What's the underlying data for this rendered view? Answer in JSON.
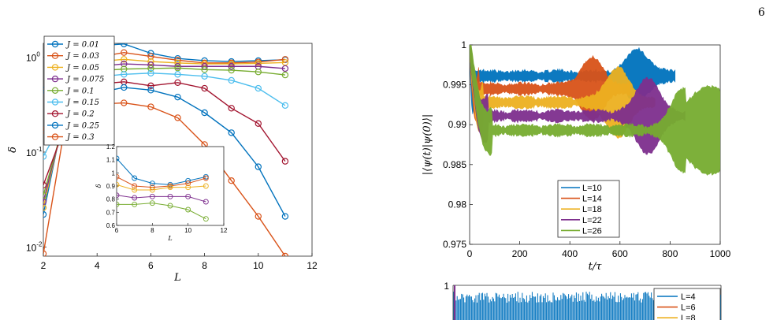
{
  "page_number": "6",
  "chart_data": [
    {
      "id": "left-main",
      "type": "line",
      "xlabel": "L",
      "ylabel": "δ",
      "xlim": [
        2,
        12
      ],
      "ylim": [
        0.008,
        1.4
      ],
      "yscale": "log",
      "xticks": [
        "2",
        "4",
        "6",
        "8",
        "10",
        "12"
      ],
      "yticks": [
        {
          "base": "10",
          "exp": "-2",
          "value": 0.01
        },
        {
          "base": "10",
          "exp": "-1",
          "value": 0.1
        },
        {
          "base": "10",
          "exp": "0",
          "value": 1
        }
      ],
      "x": [
        2,
        3,
        4,
        5,
        6,
        7,
        8,
        9,
        10,
        11
      ],
      "legend_loc": "top-left",
      "series": [
        {
          "name": "J = 0.01",
          "color": "#0072bd",
          "values": [
            0.022,
            0.52,
            1.32,
            1.38,
            1.1,
            0.97,
            0.92,
            0.9,
            0.92,
            0.94
          ]
        },
        {
          "name": "J = 0.03",
          "color": "#d95319",
          "values": [
            0.0085,
            0.4,
            1.0,
            1.12,
            1.02,
            0.93,
            0.87,
            0.87,
            0.89,
            0.95
          ]
        },
        {
          "name": "J = 0.05",
          "color": "#edb120",
          "values": [
            0.026,
            0.45,
            0.9,
            0.95,
            0.9,
            0.87,
            0.85,
            0.85,
            0.86,
            0.88
          ]
        },
        {
          "name": "J = 0.075",
          "color": "#7e2f8e",
          "values": [
            0.03,
            0.4,
            0.8,
            0.85,
            0.83,
            0.8,
            0.8,
            0.8,
            0.8,
            0.76
          ]
        },
        {
          "name": "J = 0.1",
          "color": "#77ac30",
          "values": [
            0.035,
            0.35,
            0.72,
            0.75,
            0.76,
            0.77,
            0.74,
            0.73,
            0.7,
            0.65
          ]
        },
        {
          "name": "J = 0.15",
          "color": "#4dbeee",
          "values": [
            0.09,
            0.3,
            0.62,
            0.66,
            0.68,
            0.66,
            0.63,
            0.57,
            0.47,
            0.31
          ]
        },
        {
          "name": "J = 0.2",
          "color": "#a2142f",
          "values": [
            0.045,
            0.26,
            0.52,
            0.55,
            0.5,
            0.54,
            0.47,
            0.29,
            0.2,
            0.08
          ]
        },
        {
          "name": "J = 0.25",
          "color": "#0072bd",
          "values": [
            0.45,
            0.3,
            0.42,
            0.48,
            0.45,
            0.38,
            0.26,
            0.16,
            0.07,
            0.021
          ]
        },
        {
          "name": "J = 0.3",
          "color": "#d95319",
          "values": [
            0.17,
            0.25,
            0.32,
            0.33,
            0.3,
            0.23,
            0.12,
            0.05,
            0.021,
            0.008
          ]
        }
      ]
    },
    {
      "id": "left-inset",
      "type": "line",
      "xlabel": "L",
      "ylabel": "δ",
      "xlim": [
        6,
        12
      ],
      "ylim": [
        0.6,
        1.2
      ],
      "xticks": [
        "6",
        "8",
        "10",
        "12"
      ],
      "yticks": [
        "0.6",
        "0.7",
        "0.8",
        "0.9",
        "1",
        "1.1",
        "1.2"
      ],
      "x": [
        6,
        7,
        8,
        9,
        10,
        11
      ],
      "series": [
        {
          "color": "#0072bd",
          "values": [
            1.11,
            0.96,
            0.92,
            0.91,
            0.94,
            0.97
          ]
        },
        {
          "color": "#d95319",
          "values": [
            0.97,
            0.9,
            0.89,
            0.9,
            0.92,
            0.96
          ]
        },
        {
          "color": "#edb120",
          "values": [
            0.91,
            0.87,
            0.87,
            0.89,
            0.89,
            0.9
          ]
        },
        {
          "color": "#7e2f8e",
          "values": [
            0.83,
            0.81,
            0.82,
            0.82,
            0.82,
            0.78
          ]
        },
        {
          "color": "#77ac30",
          "values": [
            0.76,
            0.76,
            0.77,
            0.75,
            0.72,
            0.65
          ]
        }
      ]
    },
    {
      "id": "right-main",
      "type": "line",
      "xlabel": "t/τ",
      "ylabel": "|⟨ψ(t)|ψ(0)⟩|",
      "xlim": [
        0,
        1000
      ],
      "ylim": [
        0.975,
        1
      ],
      "xticks": [
        "0",
        "200",
        "400",
        "600",
        "800",
        "1000"
      ],
      "yticks": [
        "0.975",
        "0.98",
        "0.985",
        "0.99",
        "0.995",
        "1"
      ],
      "legend_loc": "bottom-center",
      "series": [
        {
          "name": "L=10",
          "color": "#0072bd",
          "plateau": 0.9961,
          "end_t": 820
        },
        {
          "name": "L=14",
          "color": "#d95319",
          "plateau": 0.9945,
          "end_t": 640
        },
        {
          "name": "L=18",
          "color": "#edb120",
          "plateau": 0.9928,
          "end_t": 740
        },
        {
          "name": "L=22",
          "color": "#7e2f8e",
          "plateau": 0.9911,
          "end_t": 860
        },
        {
          "name": "L=26",
          "color": "#77ac30",
          "plateau": 0.9893,
          "end_t": 1000
        }
      ]
    },
    {
      "id": "right-lower",
      "type": "line",
      "ytick_top": "1",
      "legend_loc": "top-right",
      "series": [
        {
          "name": "L=4",
          "color": "#0072bd"
        },
        {
          "name": "L=6",
          "color": "#d95319"
        },
        {
          "name": "L=8",
          "color": "#edb120"
        }
      ]
    }
  ]
}
